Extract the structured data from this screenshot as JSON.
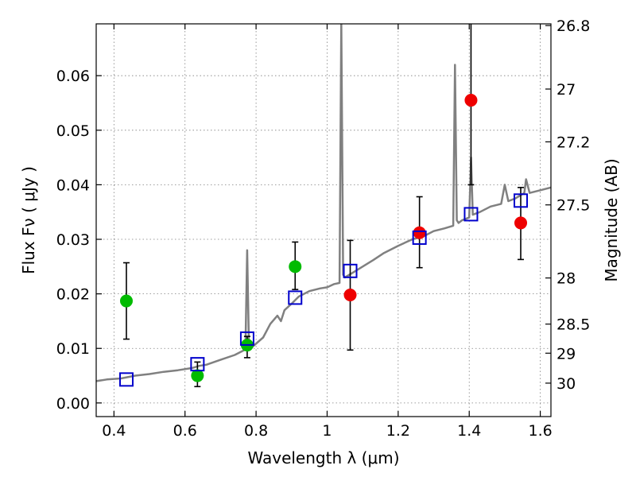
{
  "chart_data": {
    "type": "scatter",
    "xlabel": "Wavelength  λ (μm)",
    "ylabel": "Flux  Fν  ( μJy )",
    "ylabel_right": "Magnitude (AB)",
    "xlim": [
      0.35,
      1.63
    ],
    "ylim": [
      -0.0025,
      0.0695
    ],
    "x_ticks": [
      0.4,
      0.6,
      0.8,
      1.0,
      1.2,
      1.4,
      1.6
    ],
    "x_tick_labels": [
      "0.4",
      "0.6",
      "0.8",
      "1",
      "1.2",
      "1.4",
      "1.6"
    ],
    "y_ticks": [
      0.0,
      0.01,
      0.02,
      0.03,
      0.04,
      0.05,
      0.06
    ],
    "y_tick_labels": [
      "0.00",
      "0.01",
      "0.02",
      "0.03",
      "0.04",
      "0.05",
      "0.06"
    ],
    "right_ticks": [
      26.8,
      27.0,
      27.2,
      27.5,
      28.0,
      28.5,
      29.0,
      30.0
    ],
    "right_tick_labels": [
      "26.8",
      "27",
      "27.2",
      "27.5",
      "28",
      "28.5",
      "29",
      "30"
    ],
    "grid": true,
    "colors": {
      "model": "#808080",
      "green": "#00bb00",
      "red": "#ee0000",
      "squares": "#0000cc",
      "errorbar": "#000000"
    },
    "series": [
      {
        "kind": "line",
        "color": "#808080",
        "x": [
          0.35,
          0.38,
          0.42,
          0.46,
          0.5,
          0.54,
          0.58,
          0.62,
          0.64,
          0.66,
          0.7,
          0.74,
          0.77,
          0.775,
          0.78,
          0.785,
          0.79,
          0.82,
          0.84,
          0.86,
          0.87,
          0.88,
          0.9,
          0.92,
          0.95,
          0.98,
          1.0,
          1.02,
          1.035,
          1.04,
          1.045,
          1.05,
          1.07,
          1.1,
          1.13,
          1.16,
          1.2,
          1.24,
          1.27,
          1.3,
          1.33,
          1.355,
          1.36,
          1.365,
          1.37,
          1.38,
          1.4,
          1.405,
          1.41,
          1.43,
          1.46,
          1.49,
          1.5,
          1.51,
          1.53,
          1.555,
          1.56,
          1.57,
          1.6,
          1.63
        ],
        "y": [
          0.004,
          0.0043,
          0.0045,
          0.005,
          0.0053,
          0.0057,
          0.006,
          0.0064,
          0.0068,
          0.007,
          0.0079,
          0.0088,
          0.0098,
          0.028,
          0.0098,
          0.0105,
          0.0103,
          0.012,
          0.0145,
          0.016,
          0.015,
          0.017,
          0.0182,
          0.0195,
          0.0205,
          0.021,
          0.0212,
          0.0218,
          0.022,
          0.07,
          0.0235,
          0.023,
          0.0238,
          0.025,
          0.0262,
          0.0275,
          0.0288,
          0.03,
          0.0305,
          0.0315,
          0.032,
          0.0325,
          0.062,
          0.0335,
          0.033,
          0.0335,
          0.034,
          0.045,
          0.0345,
          0.035,
          0.036,
          0.0365,
          0.04,
          0.037,
          0.0375,
          0.0385,
          0.041,
          0.0385,
          0.039,
          0.0395
        ]
      },
      {
        "kind": "points",
        "marker": "circle",
        "color": "#00bb00",
        "x": [
          0.435,
          0.635,
          0.775,
          0.91
        ],
        "y": [
          0.0187,
          0.005,
          0.0106,
          0.025
        ],
        "yerr_low": [
          0.0117,
          0.003,
          0.0083,
          0.0208
        ],
        "yerr_high": [
          0.0257,
          0.0075,
          0.0122,
          0.0295
        ]
      },
      {
        "kind": "points",
        "marker": "circle",
        "color": "#ee0000",
        "x": [
          1.065,
          1.26,
          1.405,
          1.545
        ],
        "y": [
          0.0198,
          0.0312,
          0.0555,
          0.033
        ],
        "yerr_low": [
          0.0097,
          0.0248,
          0.04,
          0.0263
        ],
        "yerr_high": [
          0.0298,
          0.0378,
          0.07,
          0.0395
        ]
      },
      {
        "kind": "points",
        "marker": "square",
        "color": "#0000cc",
        "x": [
          0.435,
          0.635,
          0.775,
          0.91,
          1.065,
          1.26,
          1.405,
          1.545
        ],
        "y": [
          0.0043,
          0.0071,
          0.0118,
          0.0193,
          0.0242,
          0.0303,
          0.0346,
          0.0371
        ]
      }
    ]
  }
}
